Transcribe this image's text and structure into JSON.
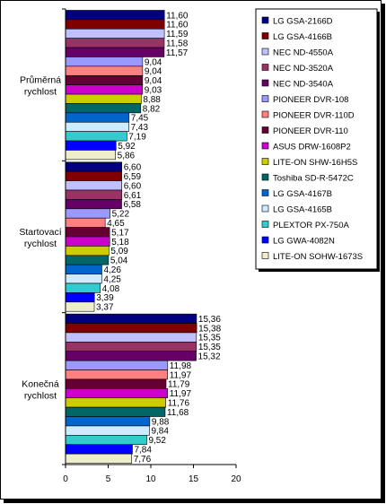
{
  "chart_data": {
    "type": "bar",
    "orientation": "horizontal",
    "categories": [
      "Průměrná rychlost",
      "Startovací rychlost",
      "Konečná rychlost"
    ],
    "category_lines": [
      [
        "Průměrná",
        "rychlost"
      ],
      [
        "Startovací",
        "rychlost"
      ],
      [
        "Konečná",
        "rychlost"
      ]
    ],
    "xlim": [
      0,
      20
    ],
    "xticks": [
      0,
      5,
      10,
      15,
      20
    ],
    "grid": false,
    "legend_position": "right",
    "series": [
      {
        "name": "LG GSA-2166D",
        "color": "#000080",
        "values": [
          11.6,
          6.6,
          15.36
        ],
        "labels": [
          "11,60",
          "6,60",
          "15,36"
        ]
      },
      {
        "name": "LG GSA-4166B",
        "color": "#800000",
        "values": [
          11.6,
          6.59,
          15.38
        ],
        "labels": [
          "11,60",
          "6,59",
          "15,38"
        ]
      },
      {
        "name": "NEC ND-4550A",
        "color": "#c0c0ff",
        "values": [
          11.59,
          6.6,
          15.35
        ],
        "labels": [
          "11,59",
          "6,60",
          "15,35"
        ]
      },
      {
        "name": "NEC ND-3520A",
        "color": "#993366",
        "values": [
          11.58,
          6.61,
          15.35
        ],
        "labels": [
          "11,58",
          "6,61",
          "15,35"
        ]
      },
      {
        "name": "NEC ND-3540A",
        "color": "#660066",
        "values": [
          11.57,
          6.58,
          15.32
        ],
        "labels": [
          "11,57",
          "6,58",
          "15,32"
        ]
      },
      {
        "name": "PIONEER DVR-108",
        "color": "#9999ff",
        "values": [
          9.04,
          5.22,
          11.98
        ],
        "labels": [
          "9,04",
          "5,22",
          "11,98"
        ]
      },
      {
        "name": "PIONEER DVR-110D",
        "color": "#ff8080",
        "values": [
          9.04,
          4.65,
          11.97
        ],
        "labels": [
          "9,04",
          "4,65",
          "11,97"
        ]
      },
      {
        "name": "PIONEER DVR-110",
        "color": "#660033",
        "values": [
          9.04,
          5.17,
          11.79
        ],
        "labels": [
          "9,04",
          "5,17",
          "11,79"
        ]
      },
      {
        "name": "ASUS DRW-1608P2",
        "color": "#cc00cc",
        "values": [
          9.03,
          5.18,
          11.97
        ],
        "labels": [
          "9,03",
          "5,18",
          "11,97"
        ]
      },
      {
        "name": "LITE-ON SHW-16H5S",
        "color": "#cccc00",
        "values": [
          8.88,
          5.09,
          11.76
        ],
        "labels": [
          "8,88",
          "5,09",
          "11,76"
        ]
      },
      {
        "name": "Toshiba SD-R-5472C",
        "color": "#006666",
        "values": [
          8.82,
          5.04,
          11.68
        ],
        "labels": [
          "8,82",
          "5,04",
          "11,68"
        ]
      },
      {
        "name": "LG GSA-4167B",
        "color": "#0066cc",
        "values": [
          7.45,
          4.26,
          9.88
        ],
        "labels": [
          "7,45",
          "4,26",
          "9,88"
        ]
      },
      {
        "name": "LG GSA-4165B",
        "color": "#ccecff",
        "values": [
          7.43,
          4.25,
          9.84
        ],
        "labels": [
          "7,43",
          "4,25",
          "9,84"
        ]
      },
      {
        "name": "PLEXTOR PX-750A",
        "color": "#33cccc",
        "values": [
          7.19,
          4.08,
          9.52
        ],
        "labels": [
          "7,19",
          "4,08",
          "9,52"
        ]
      },
      {
        "name": "LG GWA-4082N",
        "color": "#0000ff",
        "values": [
          5.92,
          3.39,
          7.84
        ],
        "labels": [
          "5,92",
          "3,39",
          "7,84"
        ]
      },
      {
        "name": "LITE-ON SOHW-1673S",
        "color": "#eeeecc",
        "values": [
          5.86,
          3.37,
          7.76
        ],
        "labels": [
          "5,86",
          "3,37",
          "7,76"
        ]
      }
    ]
  }
}
